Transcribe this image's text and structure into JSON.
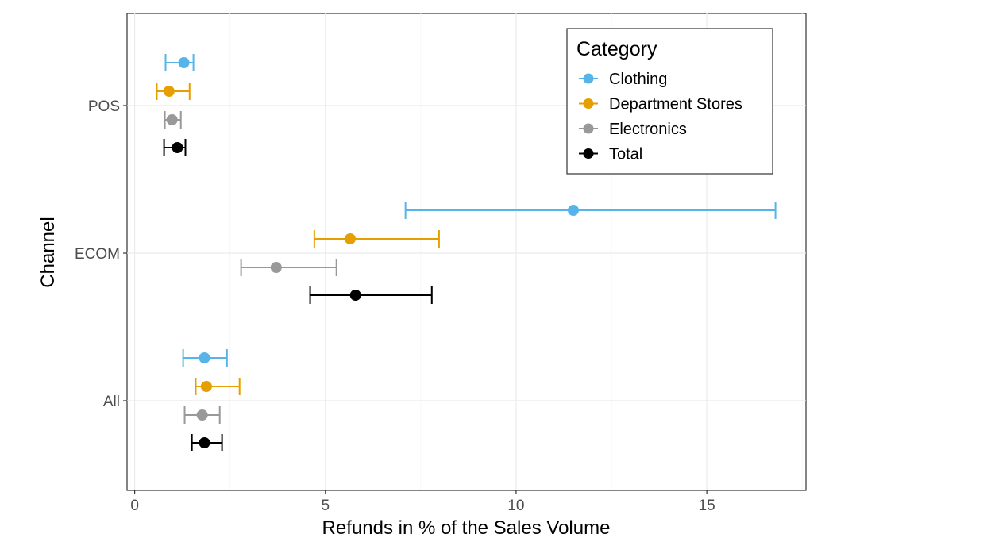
{
  "chart_data": {
    "type": "scatter",
    "subtype": "point-with-horizontal-error-bars",
    "xlabel": "Refunds in % of the Sales Volume",
    "ylabel": "Channel",
    "xlim": [
      -0.2,
      17.6
    ],
    "xticks": [
      0,
      5,
      10,
      15
    ],
    "xtick_labels": [
      "0",
      "5",
      "10",
      "15"
    ],
    "categories": [
      "POS",
      "ECOM",
      "All"
    ],
    "grid": true,
    "legend": {
      "title": "Category",
      "placement": "top-right"
    },
    "series": [
      {
        "name": "Clothing",
        "color": "#56B4E9",
        "values": [
          1.29,
          11.5,
          1.83
        ],
        "lower": [
          0.81,
          7.1,
          1.27
        ],
        "upper": [
          1.54,
          16.8,
          2.42
        ]
      },
      {
        "name": "Department Stores",
        "color": "#E69F00",
        "values": [
          0.9,
          5.65,
          1.88
        ],
        "lower": [
          0.58,
          4.71,
          1.6
        ],
        "upper": [
          1.44,
          7.98,
          2.75
        ]
      },
      {
        "name": "Electronics",
        "color": "#999999",
        "values": [
          0.98,
          3.71,
          1.77
        ],
        "lower": [
          0.79,
          2.79,
          1.31
        ],
        "upper": [
          1.21,
          5.29,
          2.23
        ]
      },
      {
        "name": "Total",
        "color": "#000000",
        "values": [
          1.12,
          5.79,
          1.83
        ],
        "lower": [
          0.77,
          4.6,
          1.5
        ],
        "upper": [
          1.33,
          7.79,
          2.29
        ]
      }
    ]
  }
}
